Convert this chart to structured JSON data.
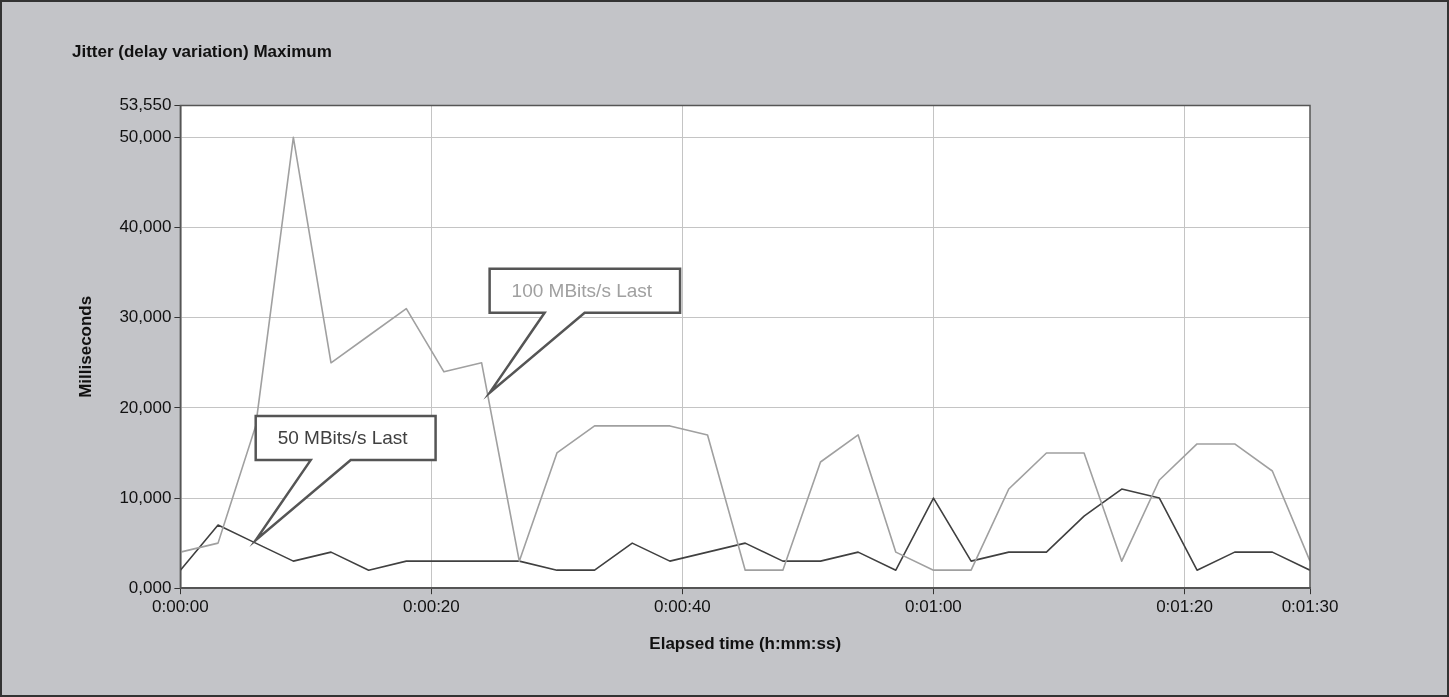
{
  "chart_data": {
    "type": "line",
    "title": "Jitter (delay variation) Maximum",
    "xlabel": "Elapsed time (h:mm:ss)",
    "ylabel": "Milliseconds",
    "x": [
      0,
      3,
      6,
      9,
      12,
      15,
      18,
      21,
      24,
      27,
      30,
      33,
      36,
      39,
      42,
      45,
      48,
      51,
      54,
      57,
      60,
      63,
      66,
      69,
      72,
      75,
      78,
      81,
      84,
      87,
      90
    ],
    "series": [
      {
        "name": "100 MBits/s Last",
        "color": "#a0a0a0",
        "values": [
          4000,
          5000,
          18000,
          50000,
          25000,
          28000,
          31000,
          24000,
          25000,
          3000,
          15000,
          18000,
          18000,
          18000,
          17000,
          2000,
          2000,
          14000,
          17000,
          4000,
          2000,
          2000,
          11000,
          15000,
          15000,
          3000,
          12000,
          16000,
          16000,
          13000,
          3000
        ]
      },
      {
        "name": "50 MBits/s Last",
        "color": "#404040",
        "values": [
          2000,
          7000,
          5000,
          3000,
          4000,
          2000,
          3000,
          3000,
          3000,
          3000,
          2000,
          2000,
          5000,
          3000,
          4000,
          5000,
          3000,
          3000,
          4000,
          2000,
          10000,
          3000,
          4000,
          4000,
          8000,
          11000,
          10000,
          2000,
          4000,
          4000,
          2000
        ]
      }
    ],
    "xlim": [
      0,
      90
    ],
    "xticks": [
      {
        "value": 0,
        "label": "0:00:00"
      },
      {
        "value": 20,
        "label": "0:00:20"
      },
      {
        "value": 40,
        "label": "0:00:40"
      },
      {
        "value": 60,
        "label": "0:01:00"
      },
      {
        "value": 80,
        "label": "0:01:20"
      },
      {
        "value": 90,
        "label": "0:01:30"
      }
    ],
    "ylim": [
      0,
      53550
    ],
    "yticks": [
      {
        "value": 0,
        "label": "0,000"
      },
      {
        "value": 10000,
        "label": "10,000"
      },
      {
        "value": 20000,
        "label": "20,000"
      },
      {
        "value": 30000,
        "label": "30,000"
      },
      {
        "value": 40000,
        "label": "40,000"
      },
      {
        "value": 50000,
        "label": "50,000"
      },
      {
        "value": 53550,
        "label": "53,550"
      }
    ],
    "grid": true,
    "legend": false,
    "marker": "none",
    "line_style": "solid"
  }
}
